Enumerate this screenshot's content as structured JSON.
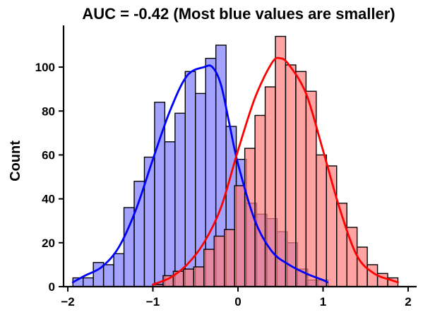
{
  "chart_data": {
    "type": "histogram",
    "title": "AUC = -0.42 (Most blue values are smaller)",
    "xlabel": "",
    "ylabel": "Count",
    "xlim": [
      -2.05,
      2.1
    ],
    "ylim": [
      0,
      119
    ],
    "x_ticks": [
      -2,
      -1,
      0,
      1,
      2
    ],
    "x_tick_labels": [
      "−2",
      "−1",
      "0",
      "1",
      "2"
    ],
    "y_ticks": [
      0,
      20,
      40,
      60,
      80,
      100
    ],
    "y_tick_labels": [
      "0",
      "20",
      "40",
      "60",
      "80",
      "100"
    ],
    "grid": false,
    "legend": "none",
    "series": [
      {
        "color": "#0000ff",
        "fill": "#7f7fff",
        "bin_edges": [
          -1.94,
          -1.82,
          -1.7,
          -1.58,
          -1.46,
          -1.34,
          -1.22,
          -1.1,
          -0.98,
          -0.86,
          -0.74,
          -0.62,
          -0.5,
          -0.38,
          -0.26,
          -0.14,
          -0.02,
          0.1,
          0.22,
          0.34,
          0.46,
          0.58,
          0.7,
          0.82,
          0.94,
          1.06
        ],
        "counts": [
          4,
          4,
          11,
          10,
          15,
          36,
          48,
          59,
          84,
          66,
          79,
          98,
          88,
          104,
          110,
          73,
          58,
          38,
          33,
          31,
          25,
          20,
          8,
          3,
          3
        ],
        "kde": {
          "x": [
            -1.94,
            -1.8,
            -1.6,
            -1.4,
            -1.2,
            -1.0,
            -0.8,
            -0.6,
            -0.4,
            -0.3,
            -0.2,
            -0.1,
            0.0,
            0.2,
            0.4,
            0.6,
            0.8,
            1.0,
            1.05
          ],
          "y": [
            2,
            5,
            9,
            18,
            35,
            58,
            80,
            96,
            100,
            100,
            92,
            74,
            56,
            30,
            16,
            10,
            6,
            3,
            2
          ]
        }
      },
      {
        "color": "#ff0000",
        "fill": "#ff7f7f",
        "bin_edges": [
          -1.0,
          -0.88,
          -0.76,
          -0.64,
          -0.52,
          -0.4,
          -0.28,
          -0.16,
          -0.04,
          0.08,
          0.2,
          0.32,
          0.44,
          0.56,
          0.68,
          0.8,
          0.92,
          1.04,
          1.16,
          1.28,
          1.4,
          1.52,
          1.64,
          1.76,
          1.88
        ],
        "counts": [
          1,
          5,
          7,
          8,
          9,
          17,
          23,
          26,
          46,
          63,
          78,
          91,
          114,
          101,
          98,
          89,
          60,
          55,
          38,
          27,
          18,
          10,
          6,
          4
        ],
        "kde": {
          "x": [
            -1.0,
            -0.8,
            -0.6,
            -0.4,
            -0.2,
            0.0,
            0.2,
            0.4,
            0.5,
            0.6,
            0.8,
            1.0,
            1.2,
            1.4,
            1.6,
            1.8,
            1.88
          ],
          "y": [
            1,
            4,
            10,
            20,
            36,
            62,
            86,
            102,
            104,
            101,
            88,
            62,
            35,
            14,
            6,
            3,
            2
          ]
        }
      }
    ]
  }
}
